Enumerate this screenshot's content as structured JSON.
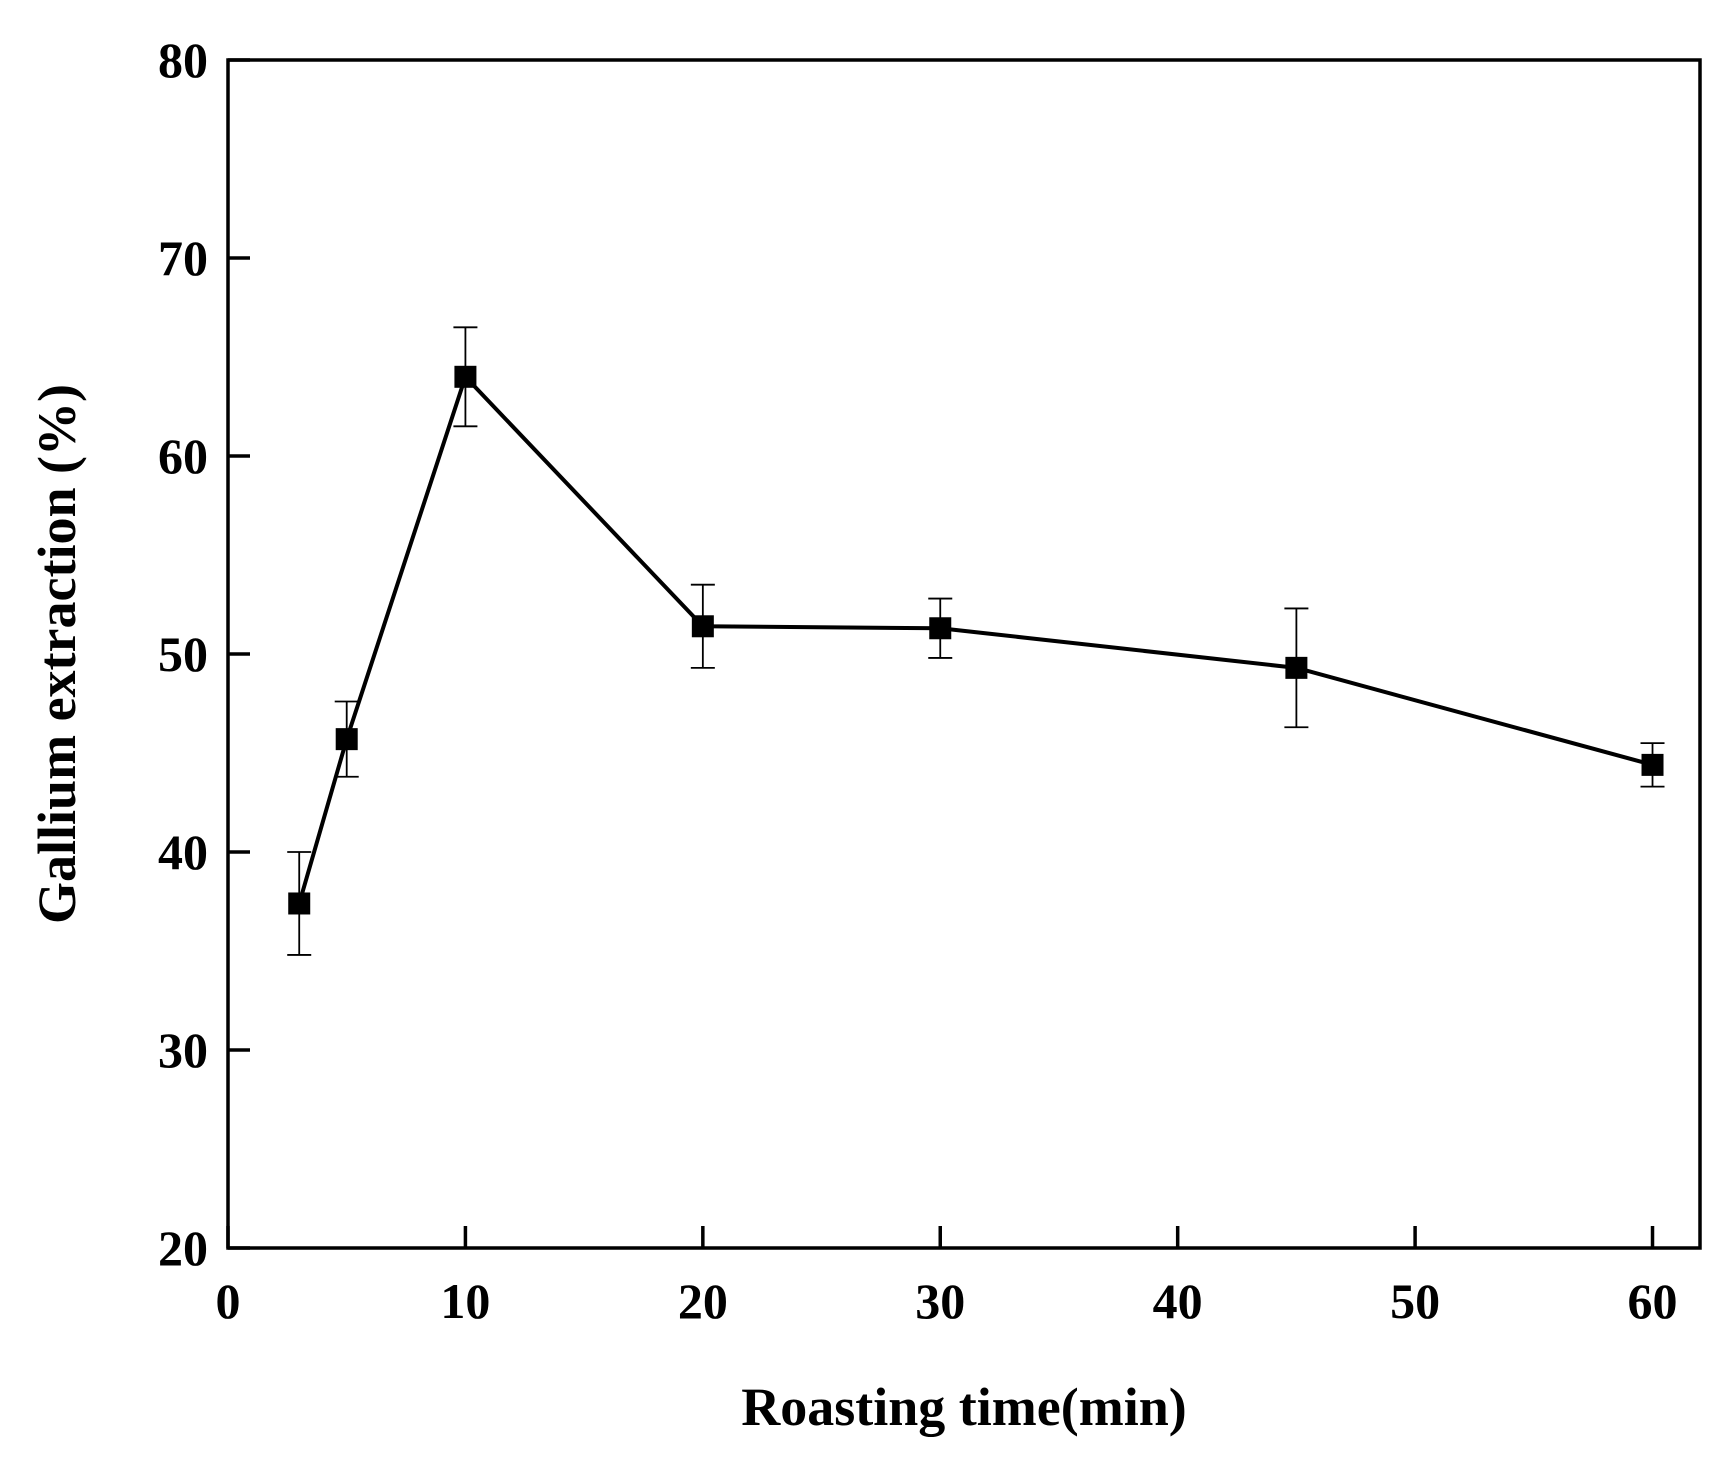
{
  "chart_data": {
    "type": "line",
    "title": "",
    "xlabel": "Roasting time(min)",
    "ylabel": "Gallium extraction (%)",
    "xlim": [
      0,
      62
    ],
    "ylim": [
      20,
      80
    ],
    "xticks": [
      0,
      10,
      20,
      30,
      40,
      50,
      60
    ],
    "yticks": [
      20,
      30,
      40,
      50,
      60,
      70,
      80
    ],
    "x_tick_labels": [
      "0",
      "10",
      "20",
      "30",
      "40",
      "50",
      "60"
    ],
    "y_tick_labels": [
      "20",
      "30",
      "40",
      "50",
      "60",
      "70",
      "80"
    ],
    "grid": false,
    "legend": "none",
    "series": [
      {
        "marker": "square",
        "color": "#000000",
        "x": [
          3,
          5,
          10,
          20,
          30,
          45,
          60
        ],
        "y": [
          37.4,
          45.7,
          64.0,
          51.4,
          51.3,
          49.3,
          44.4
        ],
        "error": [
          2.6,
          1.9,
          2.5,
          2.1,
          1.5,
          3.0,
          1.1
        ]
      }
    ]
  }
}
